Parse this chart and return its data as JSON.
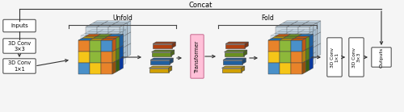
{
  "bg_color": "#f5f5f5",
  "box_color": "#ffffff",
  "arrow_color": "#333333",
  "concat_label": "Concat",
  "unfold_label": "Unfold",
  "fold_label": "Fold",
  "inputs_label": "Inputs",
  "conv3x3_label": "3D Conv\n3×3",
  "conv1x1_label": "3D Conv\n1×1",
  "transformer_label": "Transformer",
  "conv1x1_out_label": "3D Conv\n1×1",
  "conv3x3_out_label": "3D Conv\n3×3",
  "outputs_label": "Outputs",
  "front_colors": [
    [
      "#e8832a",
      "#8db83a",
      "#4990c9"
    ],
    [
      "#f5c518",
      "#8db83a",
      "#e8832a"
    ],
    [
      "#4990c9",
      "#f5c518",
      "#e8832a"
    ]
  ],
  "top_colors": [
    [
      "#c8580a",
      "#6a9020",
      "#2070b0"
    ],
    [
      "#b09010",
      "#6a9020",
      "#c8580a"
    ],
    [
      "#2070b0",
      "#b09010",
      "#c8580a"
    ]
  ],
  "side_colors": [
    [
      "#c05818",
      "#6a9020",
      "#2060a0"
    ],
    [
      "#b08010",
      "#5a8018",
      "#1050a0"
    ],
    [
      "#905010",
      "#3a6010",
      "#0838a0"
    ]
  ],
  "token_colors": [
    "#b04010",
    "#6a9020",
    "#2060a0",
    "#d0a000"
  ],
  "token_colors2": [
    "#b04010",
    "#6a9020",
    "#2060a0",
    "#d0a000"
  ]
}
